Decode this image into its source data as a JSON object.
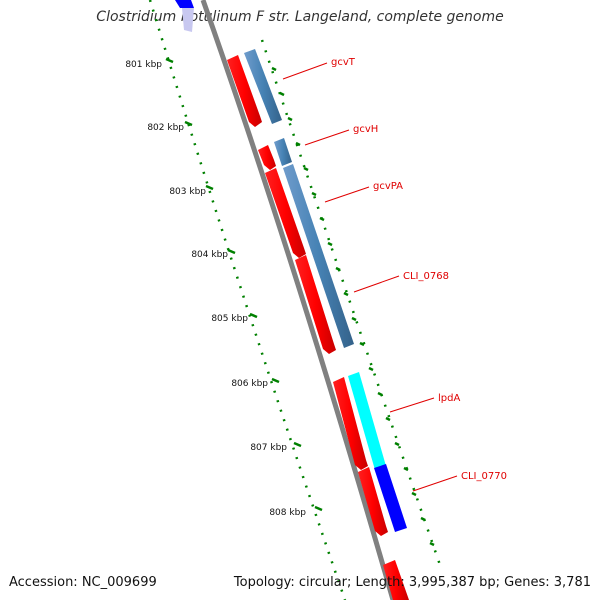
{
  "title": "Clostridium botulinum F str. Langeland, complete genome",
  "footer": {
    "accession": "Accession: NC_009699",
    "summary": "Topology: circular; Length: 3,995,387 bp; Genes: 3,781"
  },
  "ticks": [
    "801 kbp",
    "802 kbp",
    "803 kbp",
    "804 kbp",
    "805 kbp",
    "806 kbp",
    "807 kbp",
    "808 kbp"
  ],
  "genes": [
    {
      "label": "gcvT"
    },
    {
      "label": "gcvH"
    },
    {
      "label": "gcvPA"
    },
    {
      "label": "CLI_0768"
    },
    {
      "label": "lpdA"
    },
    {
      "label": "CLI_0770"
    }
  ],
  "colors": {
    "cds": "#ff0000",
    "steelblue": "#4682b4",
    "cyan": "#00ffff",
    "blue": "#0000ff",
    "backbone": "#808080",
    "ruler": "#008000",
    "label": "#e00000"
  }
}
